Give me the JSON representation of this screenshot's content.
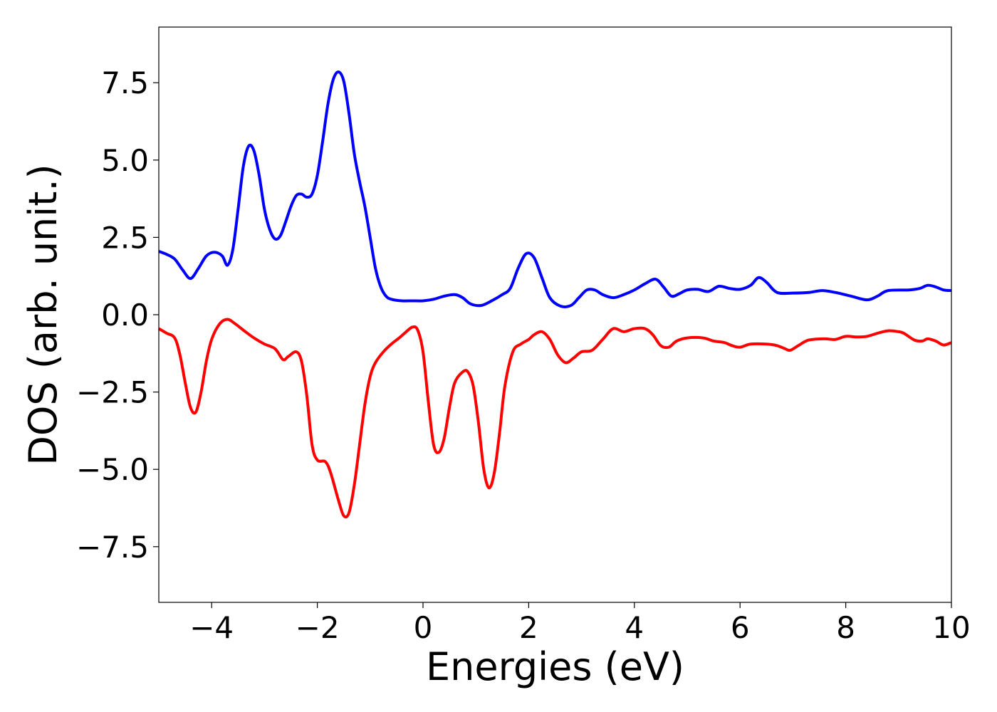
{
  "chart_data": {
    "type": "line",
    "title": "",
    "xlabel": "Energies (eV)",
    "ylabel": "DOS (arb. unit.)",
    "xlim": [
      -5,
      10
    ],
    "ylim": [
      -9.3,
      9.3
    ],
    "x_ticks": [
      -4,
      -2,
      0,
      2,
      4,
      6,
      8,
      10
    ],
    "x_tick_labels": [
      "−4",
      "−2",
      "0",
      "2",
      "4",
      "6",
      "8",
      "10"
    ],
    "y_ticks": [
      -7.5,
      -5.0,
      -2.5,
      0.0,
      2.5,
      5.0,
      7.5
    ],
    "y_tick_labels": [
      "−7.5",
      "−5.0",
      "−2.5",
      "0.0",
      "2.5",
      "5.0",
      "7.5"
    ],
    "grid": false,
    "legend": "none",
    "series": [
      {
        "color": "#0000ff",
        "points": [
          [
            -5.0,
            2.05
          ],
          [
            -4.85,
            1.95
          ],
          [
            -4.7,
            1.8
          ],
          [
            -4.55,
            1.45
          ],
          [
            -4.4,
            1.17
          ],
          [
            -4.25,
            1.5
          ],
          [
            -4.1,
            1.9
          ],
          [
            -3.95,
            2.02
          ],
          [
            -3.8,
            1.9
          ],
          [
            -3.7,
            1.6
          ],
          [
            -3.6,
            2.1
          ],
          [
            -3.5,
            3.4
          ],
          [
            -3.4,
            4.8
          ],
          [
            -3.3,
            5.45
          ],
          [
            -3.2,
            5.3
          ],
          [
            -3.1,
            4.5
          ],
          [
            -3.0,
            3.4
          ],
          [
            -2.9,
            2.75
          ],
          [
            -2.8,
            2.45
          ],
          [
            -2.7,
            2.55
          ],
          [
            -2.6,
            3.0
          ],
          [
            -2.5,
            3.5
          ],
          [
            -2.4,
            3.85
          ],
          [
            -2.3,
            3.9
          ],
          [
            -2.2,
            3.8
          ],
          [
            -2.1,
            3.9
          ],
          [
            -2.0,
            4.5
          ],
          [
            -1.9,
            5.6
          ],
          [
            -1.8,
            6.8
          ],
          [
            -1.7,
            7.6
          ],
          [
            -1.6,
            7.85
          ],
          [
            -1.5,
            7.55
          ],
          [
            -1.4,
            6.5
          ],
          [
            -1.3,
            5.2
          ],
          [
            -1.2,
            4.3
          ],
          [
            -1.1,
            3.5
          ],
          [
            -1.0,
            2.5
          ],
          [
            -0.9,
            1.5
          ],
          [
            -0.8,
            0.9
          ],
          [
            -0.7,
            0.6
          ],
          [
            -0.6,
            0.5
          ],
          [
            -0.4,
            0.45
          ],
          [
            -0.2,
            0.45
          ],
          [
            0.0,
            0.45
          ],
          [
            0.2,
            0.5
          ],
          [
            0.4,
            0.6
          ],
          [
            0.6,
            0.65
          ],
          [
            0.75,
            0.55
          ],
          [
            0.9,
            0.35
          ],
          [
            1.1,
            0.3
          ],
          [
            1.3,
            0.45
          ],
          [
            1.5,
            0.65
          ],
          [
            1.65,
            0.85
          ],
          [
            1.8,
            1.5
          ],
          [
            1.95,
            1.97
          ],
          [
            2.1,
            1.85
          ],
          [
            2.25,
            1.2
          ],
          [
            2.4,
            0.55
          ],
          [
            2.6,
            0.28
          ],
          [
            2.8,
            0.3
          ],
          [
            2.95,
            0.55
          ],
          [
            3.1,
            0.8
          ],
          [
            3.25,
            0.8
          ],
          [
            3.4,
            0.65
          ],
          [
            3.6,
            0.55
          ],
          [
            3.8,
            0.65
          ],
          [
            4.0,
            0.8
          ],
          [
            4.2,
            1.0
          ],
          [
            4.4,
            1.15
          ],
          [
            4.55,
            0.9
          ],
          [
            4.7,
            0.6
          ],
          [
            4.85,
            0.68
          ],
          [
            5.0,
            0.8
          ],
          [
            5.2,
            0.82
          ],
          [
            5.4,
            0.75
          ],
          [
            5.6,
            0.92
          ],
          [
            5.8,
            0.85
          ],
          [
            6.0,
            0.82
          ],
          [
            6.2,
            0.95
          ],
          [
            6.35,
            1.2
          ],
          [
            6.5,
            1.05
          ],
          [
            6.7,
            0.72
          ],
          [
            7.0,
            0.7
          ],
          [
            7.3,
            0.72
          ],
          [
            7.55,
            0.78
          ],
          [
            7.8,
            0.72
          ],
          [
            8.1,
            0.6
          ],
          [
            8.4,
            0.48
          ],
          [
            8.6,
            0.6
          ],
          [
            8.8,
            0.78
          ],
          [
            9.2,
            0.8
          ],
          [
            9.4,
            0.85
          ],
          [
            9.55,
            0.95
          ],
          [
            9.7,
            0.9
          ],
          [
            9.85,
            0.8
          ],
          [
            10.0,
            0.78
          ]
        ]
      },
      {
        "color": "#ff0000",
        "points": [
          [
            -5.0,
            -0.45
          ],
          [
            -4.85,
            -0.6
          ],
          [
            -4.7,
            -0.75
          ],
          [
            -4.6,
            -1.3
          ],
          [
            -4.5,
            -2.2
          ],
          [
            -4.4,
            -3.0
          ],
          [
            -4.3,
            -3.15
          ],
          [
            -4.2,
            -2.5
          ],
          [
            -4.1,
            -1.5
          ],
          [
            -4.0,
            -0.8
          ],
          [
            -3.85,
            -0.3
          ],
          [
            -3.7,
            -0.15
          ],
          [
            -3.55,
            -0.3
          ],
          [
            -3.4,
            -0.5
          ],
          [
            -3.2,
            -0.75
          ],
          [
            -3.0,
            -0.95
          ],
          [
            -2.8,
            -1.1
          ],
          [
            -2.65,
            -1.45
          ],
          [
            -2.55,
            -1.35
          ],
          [
            -2.4,
            -1.2
          ],
          [
            -2.3,
            -1.5
          ],
          [
            -2.2,
            -2.6
          ],
          [
            -2.1,
            -4.2
          ],
          [
            -2.0,
            -4.7
          ],
          [
            -1.85,
            -4.75
          ],
          [
            -1.75,
            -5.1
          ],
          [
            -1.6,
            -6.0
          ],
          [
            -1.5,
            -6.5
          ],
          [
            -1.4,
            -6.4
          ],
          [
            -1.3,
            -5.5
          ],
          [
            -1.2,
            -4.2
          ],
          [
            -1.1,
            -2.9
          ],
          [
            -1.0,
            -2.0
          ],
          [
            -0.9,
            -1.55
          ],
          [
            -0.75,
            -1.2
          ],
          [
            -0.6,
            -0.95
          ],
          [
            -0.45,
            -0.75
          ],
          [
            -0.35,
            -0.6
          ],
          [
            -0.2,
            -0.4
          ],
          [
            -0.1,
            -0.5
          ],
          [
            0.0,
            -1.2
          ],
          [
            0.1,
            -2.8
          ],
          [
            0.2,
            -4.2
          ],
          [
            0.3,
            -4.45
          ],
          [
            0.4,
            -4.0
          ],
          [
            0.5,
            -3.0
          ],
          [
            0.6,
            -2.2
          ],
          [
            0.75,
            -1.85
          ],
          [
            0.85,
            -1.85
          ],
          [
            0.95,
            -2.3
          ],
          [
            1.05,
            -3.5
          ],
          [
            1.15,
            -5.0
          ],
          [
            1.25,
            -5.6
          ],
          [
            1.35,
            -5.1
          ],
          [
            1.45,
            -3.8
          ],
          [
            1.55,
            -2.3
          ],
          [
            1.7,
            -1.2
          ],
          [
            1.85,
            -0.95
          ],
          [
            2.0,
            -0.8
          ],
          [
            2.1,
            -0.65
          ],
          [
            2.25,
            -0.55
          ],
          [
            2.4,
            -0.8
          ],
          [
            2.55,
            -1.3
          ],
          [
            2.7,
            -1.55
          ],
          [
            2.85,
            -1.4
          ],
          [
            3.0,
            -1.2
          ],
          [
            3.2,
            -1.15
          ],
          [
            3.4,
            -0.8
          ],
          [
            3.6,
            -0.45
          ],
          [
            3.8,
            -0.55
          ],
          [
            4.0,
            -0.45
          ],
          [
            4.2,
            -0.45
          ],
          [
            4.35,
            -0.65
          ],
          [
            4.5,
            -1.0
          ],
          [
            4.65,
            -1.05
          ],
          [
            4.8,
            -0.85
          ],
          [
            5.0,
            -0.75
          ],
          [
            5.3,
            -0.75
          ],
          [
            5.5,
            -0.85
          ],
          [
            5.7,
            -0.9
          ],
          [
            5.85,
            -1.0
          ],
          [
            6.0,
            -1.05
          ],
          [
            6.2,
            -0.95
          ],
          [
            6.5,
            -0.95
          ],
          [
            6.7,
            -1.0
          ],
          [
            6.85,
            -1.1
          ],
          [
            6.95,
            -1.15
          ],
          [
            7.1,
            -1.0
          ],
          [
            7.3,
            -0.82
          ],
          [
            7.6,
            -0.78
          ],
          [
            7.8,
            -0.8
          ],
          [
            8.0,
            -0.7
          ],
          [
            8.2,
            -0.72
          ],
          [
            8.4,
            -0.7
          ],
          [
            8.6,
            -0.6
          ],
          [
            8.8,
            -0.52
          ],
          [
            9.0,
            -0.55
          ],
          [
            9.1,
            -0.6
          ],
          [
            9.3,
            -0.82
          ],
          [
            9.45,
            -0.85
          ],
          [
            9.55,
            -0.78
          ],
          [
            9.7,
            -0.85
          ],
          [
            9.85,
            -0.98
          ],
          [
            10.0,
            -0.9
          ]
        ]
      }
    ]
  }
}
